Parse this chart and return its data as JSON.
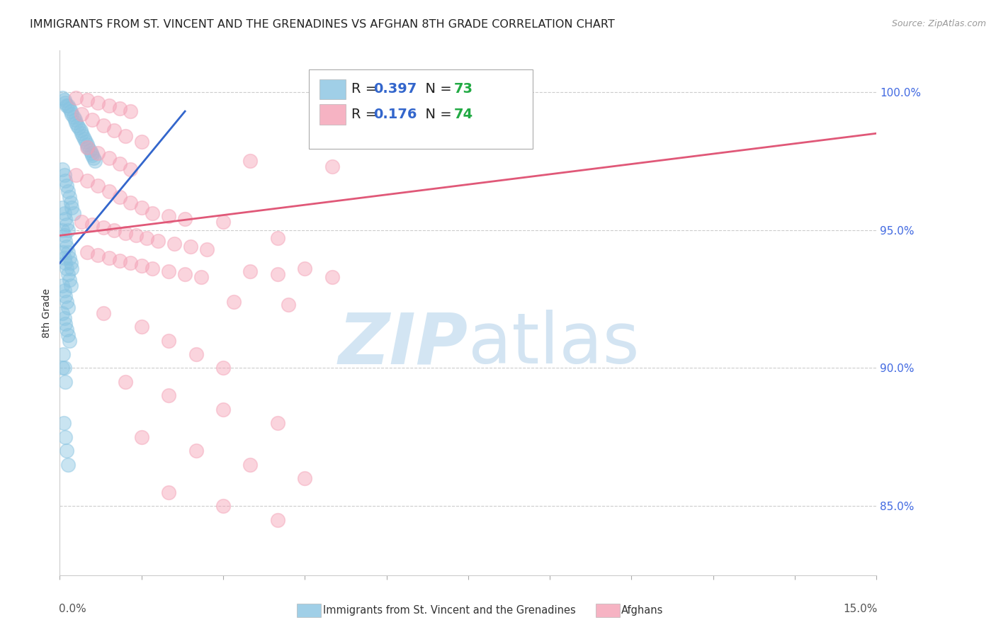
{
  "title": "IMMIGRANTS FROM ST. VINCENT AND THE GRENADINES VS AFGHAN 8TH GRADE CORRELATION CHART",
  "source": "Source: ZipAtlas.com",
  "ylabel": "8th Grade",
  "yticks": [
    85.0,
    90.0,
    95.0,
    100.0
  ],
  "ytick_labels": [
    "85.0%",
    "90.0%",
    "95.0%",
    "100.0%"
  ],
  "xmin": 0.0,
  "xmax": 15.0,
  "ymin": 82.5,
  "ymax": 101.5,
  "blue_R": "0.397",
  "blue_N": "73",
  "pink_R": "0.176",
  "pink_N": "74",
  "blue_color": "#89c4e1",
  "pink_color": "#f4a0b5",
  "blue_line_color": "#3366cc",
  "pink_line_color": "#e05878",
  "legend_R_color": "#3366cc",
  "legend_N_color": "#22aa44",
  "blue_points_x": [
    0.05,
    0.08,
    0.1,
    0.12,
    0.15,
    0.18,
    0.2,
    0.22,
    0.25,
    0.28,
    0.3,
    0.32,
    0.35,
    0.38,
    0.4,
    0.42,
    0.45,
    0.48,
    0.5,
    0.52,
    0.55,
    0.58,
    0.6,
    0.62,
    0.65,
    0.05,
    0.08,
    0.1,
    0.12,
    0.15,
    0.18,
    0.2,
    0.22,
    0.25,
    0.05,
    0.08,
    0.1,
    0.12,
    0.15,
    0.05,
    0.08,
    0.1,
    0.12,
    0.15,
    0.18,
    0.2,
    0.22,
    0.06,
    0.08,
    0.1,
    0.12,
    0.15,
    0.18,
    0.2,
    0.05,
    0.08,
    0.1,
    0.12,
    0.15,
    0.05,
    0.08,
    0.1,
    0.12,
    0.15,
    0.18,
    0.06,
    0.08,
    0.1,
    0.05,
    0.07,
    0.1,
    0.12,
    0.15
  ],
  "blue_points_y": [
    99.8,
    99.7,
    99.6,
    99.5,
    99.5,
    99.4,
    99.3,
    99.2,
    99.1,
    99.0,
    98.9,
    98.8,
    98.7,
    98.6,
    98.5,
    98.4,
    98.3,
    98.2,
    98.1,
    98.0,
    97.9,
    97.8,
    97.7,
    97.6,
    97.5,
    97.2,
    97.0,
    96.8,
    96.6,
    96.4,
    96.2,
    96.0,
    95.8,
    95.6,
    95.8,
    95.6,
    95.4,
    95.2,
    95.0,
    95.0,
    94.8,
    94.6,
    94.4,
    94.2,
    94.0,
    93.8,
    93.6,
    94.2,
    94.0,
    93.8,
    93.6,
    93.4,
    93.2,
    93.0,
    93.0,
    92.8,
    92.6,
    92.4,
    92.2,
    92.0,
    91.8,
    91.6,
    91.4,
    91.2,
    91.0,
    90.5,
    90.0,
    89.5,
    90.0,
    88.0,
    87.5,
    87.0,
    86.5
  ],
  "pink_points_x": [
    0.3,
    0.5,
    0.7,
    0.9,
    1.1,
    1.3,
    0.4,
    0.6,
    0.8,
    1.0,
    1.2,
    1.5,
    0.5,
    0.7,
    0.9,
    1.1,
    1.3,
    0.3,
    0.5,
    0.7,
    0.9,
    1.1,
    1.3,
    1.5,
    1.7,
    2.0,
    2.3,
    0.4,
    0.6,
    0.8,
    1.0,
    1.2,
    1.4,
    1.6,
    1.8,
    2.1,
    2.4,
    2.7,
    0.5,
    0.7,
    0.9,
    1.1,
    1.3,
    1.5,
    1.7,
    2.0,
    2.3,
    2.6,
    3.5,
    5.0,
    3.0,
    4.0,
    4.5,
    3.5,
    4.0,
    5.0,
    3.2,
    4.2,
    0.8,
    1.5,
    2.0,
    2.5,
    3.0,
    1.2,
    2.0,
    3.0,
    4.0,
    1.5,
    2.5,
    3.5,
    4.5,
    2.0,
    3.0,
    4.0
  ],
  "pink_points_y": [
    99.8,
    99.7,
    99.6,
    99.5,
    99.4,
    99.3,
    99.2,
    99.0,
    98.8,
    98.6,
    98.4,
    98.2,
    98.0,
    97.8,
    97.6,
    97.4,
    97.2,
    97.0,
    96.8,
    96.6,
    96.4,
    96.2,
    96.0,
    95.8,
    95.6,
    95.5,
    95.4,
    95.3,
    95.2,
    95.1,
    95.0,
    94.9,
    94.8,
    94.7,
    94.6,
    94.5,
    94.4,
    94.3,
    94.2,
    94.1,
    94.0,
    93.9,
    93.8,
    93.7,
    93.6,
    93.5,
    93.4,
    93.3,
    97.5,
    97.3,
    95.3,
    94.7,
    93.6,
    93.5,
    93.4,
    93.3,
    92.4,
    92.3,
    92.0,
    91.5,
    91.0,
    90.5,
    90.0,
    89.5,
    89.0,
    88.5,
    88.0,
    87.5,
    87.0,
    86.5,
    86.0,
    85.5,
    85.0,
    84.5
  ],
  "blue_trendline_x": [
    0.0,
    2.3
  ],
  "blue_trendline_y": [
    93.8,
    99.3
  ],
  "pink_trendline_x": [
    0.0,
    15.0
  ],
  "pink_trendline_y": [
    94.8,
    98.5
  ]
}
